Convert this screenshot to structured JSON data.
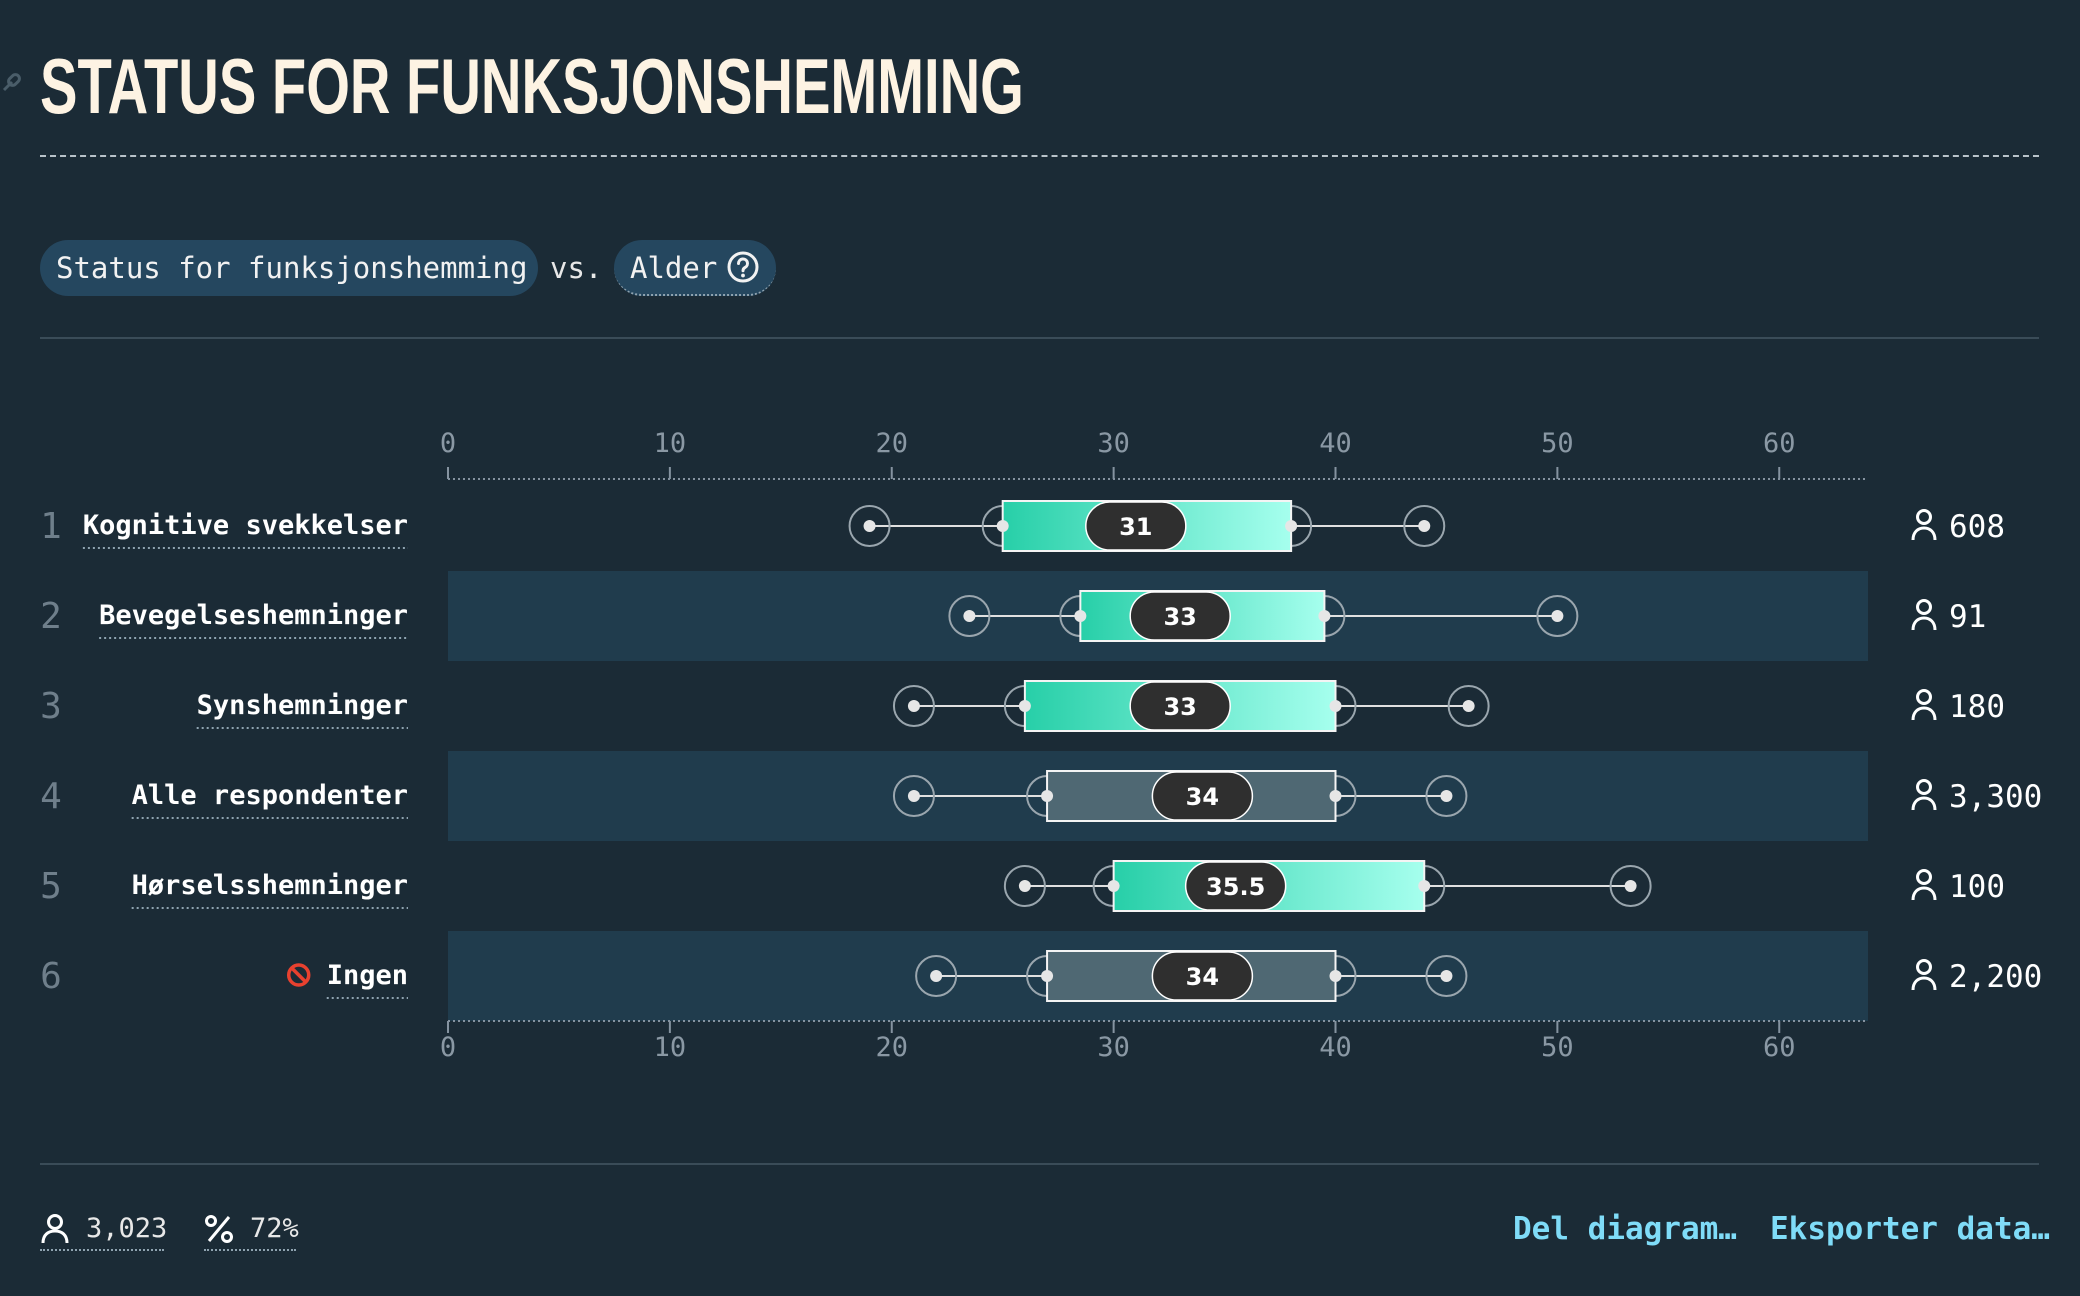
{
  "title": "STATUS FOR FUNKSJONSHEMMING",
  "controls": {
    "dimension_label": "Status for funksjonshemming",
    "vs_label": "vs.",
    "measure_label": "Alder"
  },
  "footer": {
    "respondents": "3,023",
    "percent": "72%",
    "share_label": "Del diagram…",
    "export_label": "Eksporter data…"
  },
  "colors": {
    "background": "#1b2b36",
    "band": "#203c4d",
    "box_gradient_start": "#27cfa8",
    "box_gradient_end": "#a6ffee",
    "reference_box": "#4f6873",
    "median_pill": "#2f2f2f",
    "action_link": "#7fdcf8"
  },
  "chart_data": {
    "type": "boxplot",
    "orientation": "horizontal",
    "xlim": [
      0,
      64
    ],
    "xticks": [
      0,
      10,
      20,
      30,
      40,
      50,
      60
    ],
    "rows": [
      {
        "rank": "1",
        "label": "Kognitive svekkelser",
        "icon": "",
        "min": 19,
        "q1": 25,
        "median": 31,
        "q3": 38,
        "max": 44,
        "count": "608",
        "reference": false
      },
      {
        "rank": "2",
        "label": "Bevegelseshemninger",
        "icon": "",
        "min": 23.5,
        "q1": 28.5,
        "median": 33,
        "q3": 39.5,
        "max": 50,
        "count": "91",
        "reference": false
      },
      {
        "rank": "3",
        "label": "Synshemninger",
        "icon": "",
        "min": 21,
        "q1": 26,
        "median": 33,
        "q3": 40,
        "max": 46,
        "count": "180",
        "reference": false
      },
      {
        "rank": "4",
        "label": "Alle respondenter",
        "icon": "",
        "min": 21,
        "q1": 27,
        "median": 34,
        "q3": 40,
        "max": 45,
        "count": "3,300",
        "reference": true
      },
      {
        "rank": "5",
        "label": "Hørselsshemninger",
        "icon": "",
        "min": 26,
        "q1": 30,
        "median": 35.5,
        "q3": 44,
        "max": 53.3,
        "count": "100",
        "reference": false
      },
      {
        "rank": "6",
        "label": "Ingen",
        "icon": "no-entry-icon",
        "min": 22,
        "q1": 27,
        "median": 34,
        "q3": 40,
        "max": 45,
        "count": "2,200",
        "reference": true
      }
    ]
  }
}
